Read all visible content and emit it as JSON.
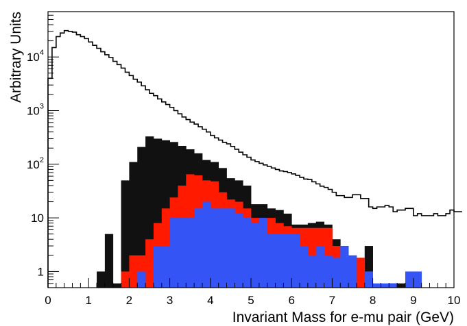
{
  "chart_data": {
    "type": "histogram",
    "title": "",
    "xlabel": "Invariant Mass for e-mu pair (GeV)",
    "ylabel": "Arbitrary Units",
    "x_range": [
      0,
      10
    ],
    "y_range": [
      0.5,
      70000
    ],
    "y_scale": "log",
    "bin_width": 0.2,
    "x_ticks": [
      "0",
      "1",
      "2",
      "3",
      "4",
      "5",
      "6",
      "7",
      "8",
      "9",
      "10"
    ],
    "y_ticks": [
      {
        "value": 1,
        "mantissa": "1",
        "exp": ""
      },
      {
        "value": 10,
        "mantissa": "10",
        "exp": ""
      },
      {
        "value": 100,
        "mantissa": "10",
        "exp": "2"
      },
      {
        "value": 1000,
        "mantissa": "10",
        "exp": "3"
      },
      {
        "value": 10000,
        "mantissa": "10",
        "exp": "4"
      }
    ],
    "grid": false,
    "legend": "none",
    "series": [
      {
        "kind": "outline",
        "color": "#000000",
        "x_start": 0,
        "width": 0.1,
        "values": [
          4000,
          15000,
          24000,
          28000,
          31000,
          30000,
          29000,
          26000,
          24000,
          22000,
          19000,
          16500,
          14500,
          12500,
          11000,
          9800,
          8300,
          7200,
          6200,
          5200,
          4500,
          3850,
          3400,
          2900,
          2450,
          2100,
          1900,
          1650,
          1450,
          1300,
          1150,
          1000,
          870,
          760,
          680,
          610,
          560,
          500,
          450,
          400,
          345,
          310,
          282,
          255,
          240,
          215,
          190,
          168,
          150,
          135,
          120,
          112,
          104,
          97,
          91,
          85,
          80,
          75,
          73,
          70,
          66,
          62,
          57,
          53,
          52,
          47,
          43,
          39,
          37,
          34,
          30,
          26,
          26,
          24,
          24,
          27,
          27,
          23,
          23,
          16,
          15,
          16,
          16,
          17,
          16,
          13,
          14,
          14,
          15,
          15,
          11,
          12,
          11,
          11,
          11,
          12,
          11,
          11,
          12,
          14,
          13,
          13
        ]
      },
      {
        "kind": "filled",
        "color": "#111111",
        "values": [
          0,
          0,
          0,
          0,
          0,
          0,
          1,
          5,
          0.6,
          50,
          110,
          210,
          330,
          300,
          280,
          260,
          220,
          190,
          160,
          120,
          110,
          85,
          55,
          50,
          40,
          18,
          18,
          15,
          14,
          12,
          7.5,
          7.5,
          8,
          8.5,
          7.5,
          4,
          3,
          1.8,
          1.8,
          3,
          0,
          0,
          0.6,
          0.6,
          0,
          0,
          0,
          0,
          0,
          0
        ]
      },
      {
        "kind": "filled",
        "color": "#ff1a00",
        "values": [
          0,
          0,
          0,
          0,
          0,
          0,
          0,
          0,
          0,
          1,
          2,
          2,
          4,
          8,
          15,
          24,
          40,
          65,
          62,
          50,
          48,
          30,
          22,
          20,
          15,
          10,
          10,
          10,
          8,
          7,
          6.5,
          6.5,
          6.5,
          6.5,
          6.5,
          3,
          3,
          1.8,
          1.8,
          1,
          0,
          0,
          0,
          0,
          0,
          0,
          0,
          0,
          0,
          0
        ]
      },
      {
        "kind": "filled",
        "color": "#3454f5",
        "values": [
          0,
          0,
          0,
          0,
          0,
          0,
          0,
          0,
          0,
          0,
          0,
          1,
          0,
          3,
          3,
          10,
          10,
          10,
          15,
          20,
          15,
          15,
          15,
          12,
          10,
          8,
          10,
          5,
          5,
          5,
          5,
          3,
          2,
          3,
          2,
          1.8,
          3,
          2,
          0,
          1,
          0.6,
          0.6,
          0.6,
          0,
          1,
          1,
          0,
          0,
          0,
          0
        ]
      }
    ]
  }
}
